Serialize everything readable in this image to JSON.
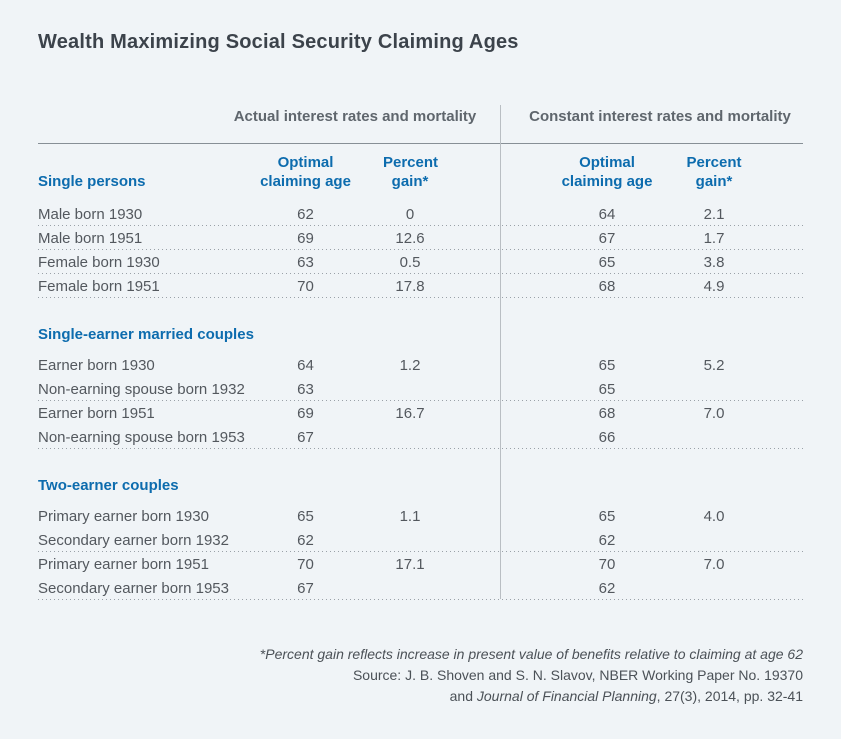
{
  "title": "Wealth Maximizing Social Security Claiming Ages",
  "colors": {
    "accent_blue": "#0d6cae",
    "background": "#f0f4f7",
    "body_text": "#53585e",
    "title_text": "#3c434b"
  },
  "chart_data": {
    "type": "table",
    "title": "Wealth Maximizing Social Security Claiming Ages",
    "group_headers": {
      "actual": "Actual interest rates and mortality",
      "constant": "Constant interest rates and mortality"
    },
    "column_headers": {
      "claiming_age": "Optimal\nclaiming age",
      "percent_gain": "Percent\ngain*"
    },
    "sections": [
      {
        "label": "Single persons",
        "rows": [
          {
            "label": "Male born 1930",
            "actual_age": "62",
            "actual_gain": "0",
            "constant_age": "64",
            "constant_gain": "2.1"
          },
          {
            "label": "Male born 1951",
            "actual_age": "69",
            "actual_gain": "12.6",
            "constant_age": "67",
            "constant_gain": "1.7"
          },
          {
            "label": "Female born 1930",
            "actual_age": "63",
            "actual_gain": "0.5",
            "constant_age": "65",
            "constant_gain": "3.8"
          },
          {
            "label": "Female born 1951",
            "actual_age": "70",
            "actual_gain": "17.8",
            "constant_age": "68",
            "constant_gain": "4.9"
          }
        ]
      },
      {
        "label": "Single-earner married couples",
        "rows": [
          {
            "label": "Earner born 1930",
            "actual_age": "64",
            "actual_gain": "1.2",
            "constant_age": "65",
            "constant_gain": "5.2"
          },
          {
            "label": "Non-earning spouse born 1932",
            "actual_age": "63",
            "actual_gain": "",
            "constant_age": "65",
            "constant_gain": ""
          },
          {
            "label": "Earner born 1951",
            "actual_age": "69",
            "actual_gain": "16.7",
            "constant_age": "68",
            "constant_gain": "7.0"
          },
          {
            "label": "Non-earning spouse born 1953",
            "actual_age": "67",
            "actual_gain": "",
            "constant_age": "66",
            "constant_gain": ""
          }
        ]
      },
      {
        "label": "Two-earner couples",
        "rows": [
          {
            "label": "Primary earner born 1930",
            "actual_age": "65",
            "actual_gain": "1.1",
            "constant_age": "65",
            "constant_gain": "4.0"
          },
          {
            "label": "Secondary earner born 1932",
            "actual_age": "62",
            "actual_gain": "",
            "constant_age": "62",
            "constant_gain": ""
          },
          {
            "label": "Primary earner born 1951",
            "actual_age": "70",
            "actual_gain": "17.1",
            "constant_age": "70",
            "constant_gain": "7.0"
          },
          {
            "label": "Secondary earner born 1953",
            "actual_age": "67",
            "actual_gain": "",
            "constant_age": "62",
            "constant_gain": ""
          }
        ]
      }
    ]
  },
  "footer": {
    "note": "*Percent gain reflects increase in present value of benefits relative to claiming at age 62",
    "source_line1": "Source: J. B. Shoven and S. N. Slavov, NBER Working Paper No. 19370",
    "source_line2_prefix": "and ",
    "source_line2_journal": "Journal of Financial Planning",
    "source_line2_suffix": ", 27(3), 2014, pp. 32-41"
  }
}
